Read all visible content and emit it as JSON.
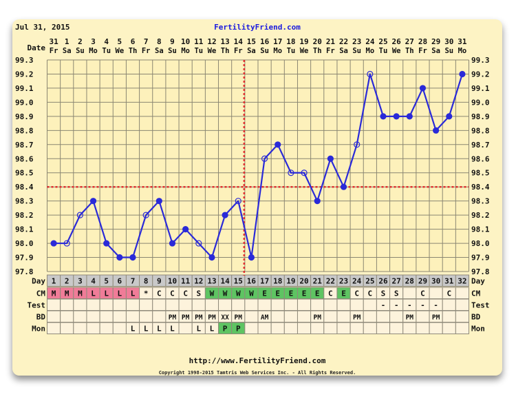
{
  "header": {
    "date": "Jul 31, 2015",
    "site": "FertilityFriend.com"
  },
  "footer": {
    "url": "http://www.FertilityFriend.com",
    "copyright": "Copyright 1998-2015 Tamtris Web Services Inc. - All Rights Reserved."
  },
  "row_labels": {
    "date": "Date",
    "day": "Day",
    "cm": "CM",
    "test": "Test",
    "bd": "BD",
    "mon": "Mon"
  },
  "colors": {
    "line": "#2a2ad8",
    "coverline": "#e03030",
    "cm_pink": "#f07c98",
    "cm_green": "#5ec462",
    "plot_bg": "#fdf1bb",
    "grid": "#8a8672"
  },
  "chart_data": {
    "type": "line",
    "ylim": [
      97.8,
      99.3
    ],
    "yticks": [
      "99.3",
      "99.2",
      "99.1",
      "99.0",
      "98.9",
      "98.8",
      "98.7",
      "98.6",
      "98.5",
      "98.4",
      "98.3",
      "98.2",
      "98.1",
      "98.0",
      "97.9",
      "97.8"
    ],
    "coverline": 98.4,
    "ovulation_day": 16,
    "grid": true,
    "days": [
      {
        "day": "1",
        "date": "31",
        "dow": "Fr",
        "temp": 98.0,
        "open": false,
        "cm": "M",
        "cm_color": "pink",
        "test": "",
        "bd": "",
        "mon": ""
      },
      {
        "day": "2",
        "date": "1",
        "dow": "Sa",
        "temp": 98.0,
        "open": true,
        "cm": "M",
        "cm_color": "pink",
        "test": "",
        "bd": "",
        "mon": ""
      },
      {
        "day": "3",
        "date": "2",
        "dow": "Su",
        "temp": 98.2,
        "open": true,
        "cm": "M",
        "cm_color": "pink",
        "test": "",
        "bd": "",
        "mon": ""
      },
      {
        "day": "4",
        "date": "3",
        "dow": "Mo",
        "temp": 98.3,
        "open": false,
        "cm": "L",
        "cm_color": "pink",
        "test": "",
        "bd": "",
        "mon": ""
      },
      {
        "day": "5",
        "date": "4",
        "dow": "Tu",
        "temp": 98.0,
        "open": false,
        "cm": "L",
        "cm_color": "pink",
        "test": "",
        "bd": "",
        "mon": ""
      },
      {
        "day": "6",
        "date": "5",
        "dow": "We",
        "temp": 97.9,
        "open": false,
        "cm": "L",
        "cm_color": "pink",
        "test": "",
        "bd": "",
        "mon": ""
      },
      {
        "day": "7",
        "date": "6",
        "dow": "Th",
        "temp": 97.9,
        "open": false,
        "cm": "L",
        "cm_color": "pink",
        "test": "",
        "bd": "",
        "mon": "L"
      },
      {
        "day": "8",
        "date": "7",
        "dow": "Fr",
        "temp": 98.2,
        "open": true,
        "cm": "*",
        "cm_color": "",
        "test": "",
        "bd": "",
        "mon": "L"
      },
      {
        "day": "9",
        "date": "8",
        "dow": "Sa",
        "temp": 98.3,
        "open": false,
        "cm": "C",
        "cm_color": "",
        "test": "",
        "bd": "",
        "mon": "L"
      },
      {
        "day": "10",
        "date": "9",
        "dow": "Su",
        "temp": 98.0,
        "open": false,
        "cm": "C",
        "cm_color": "",
        "test": "",
        "bd": "PM",
        "mon": "L"
      },
      {
        "day": "11",
        "date": "10",
        "dow": "Mo",
        "temp": 98.1,
        "open": false,
        "cm": "C",
        "cm_color": "",
        "test": "",
        "bd": "PM",
        "mon": ""
      },
      {
        "day": "12",
        "date": "11",
        "dow": "Tu",
        "temp": 98.0,
        "open": true,
        "cm": "S",
        "cm_color": "",
        "test": "",
        "bd": "PM",
        "mon": "L"
      },
      {
        "day": "13",
        "date": "12",
        "dow": "We",
        "temp": 97.9,
        "open": false,
        "cm": "W",
        "cm_color": "green",
        "test": "",
        "bd": "PM",
        "mon": "L"
      },
      {
        "day": "14",
        "date": "13",
        "dow": "Th",
        "temp": 98.2,
        "open": false,
        "cm": "W",
        "cm_color": "green",
        "test": "",
        "bd": "XX",
        "mon": "P"
      },
      {
        "day": "15",
        "date": "14",
        "dow": "Fr",
        "temp": 98.3,
        "open": true,
        "cm": "W",
        "cm_color": "green",
        "test": "",
        "bd": "PM",
        "mon": "P"
      },
      {
        "day": "16",
        "date": "15",
        "dow": "Sa",
        "temp": 97.9,
        "open": false,
        "cm": "W",
        "cm_color": "green",
        "test": "",
        "bd": "",
        "mon": ""
      },
      {
        "day": "17",
        "date": "16",
        "dow": "Su",
        "temp": 98.6,
        "open": true,
        "cm": "E",
        "cm_color": "green",
        "test": "",
        "bd": "AM",
        "mon": ""
      },
      {
        "day": "18",
        "date": "17",
        "dow": "Mo",
        "temp": 98.7,
        "open": false,
        "cm": "E",
        "cm_color": "green",
        "test": "",
        "bd": "",
        "mon": ""
      },
      {
        "day": "19",
        "date": "18",
        "dow": "Tu",
        "temp": 98.5,
        "open": true,
        "cm": "E",
        "cm_color": "green",
        "test": "",
        "bd": "",
        "mon": ""
      },
      {
        "day": "20",
        "date": "19",
        "dow": "We",
        "temp": 98.5,
        "open": true,
        "cm": "E",
        "cm_color": "green",
        "test": "",
        "bd": "",
        "mon": ""
      },
      {
        "day": "21",
        "date": "20",
        "dow": "Th",
        "temp": 98.3,
        "open": false,
        "cm": "E",
        "cm_color": "green",
        "test": "",
        "bd": "PM",
        "mon": ""
      },
      {
        "day": "22",
        "date": "21",
        "dow": "Fr",
        "temp": 98.6,
        "open": false,
        "cm": "C",
        "cm_color": "",
        "test": "",
        "bd": "",
        "mon": ""
      },
      {
        "day": "23",
        "date": "22",
        "dow": "Sa",
        "temp": 98.4,
        "open": false,
        "cm": "E",
        "cm_color": "green",
        "test": "",
        "bd": "",
        "mon": ""
      },
      {
        "day": "24",
        "date": "23",
        "dow": "Su",
        "temp": 98.7,
        "open": true,
        "cm": "C",
        "cm_color": "",
        "test": "",
        "bd": "PM",
        "mon": ""
      },
      {
        "day": "25",
        "date": "24",
        "dow": "Mo",
        "temp": 99.2,
        "open": true,
        "cm": "C",
        "cm_color": "",
        "test": "",
        "bd": "",
        "mon": ""
      },
      {
        "day": "26",
        "date": "25",
        "dow": "Tu",
        "temp": 98.9,
        "open": false,
        "cm": "S",
        "cm_color": "",
        "test": "-",
        "bd": "",
        "mon": ""
      },
      {
        "day": "27",
        "date": "26",
        "dow": "We",
        "temp": 98.9,
        "open": false,
        "cm": "S",
        "cm_color": "",
        "test": "-",
        "bd": "",
        "mon": ""
      },
      {
        "day": "28",
        "date": "27",
        "dow": "Th",
        "temp": 98.9,
        "open": false,
        "cm": "",
        "cm_color": "",
        "test": "-",
        "bd": "PM",
        "mon": ""
      },
      {
        "day": "29",
        "date": "28",
        "dow": "Fr",
        "temp": 99.1,
        "open": false,
        "cm": "C",
        "cm_color": "",
        "test": "-",
        "bd": "",
        "mon": ""
      },
      {
        "day": "30",
        "date": "29",
        "dow": "Sa",
        "temp": 98.8,
        "open": false,
        "cm": "",
        "cm_color": "",
        "test": "-",
        "bd": "PM",
        "mon": ""
      },
      {
        "day": "31",
        "date": "30",
        "dow": "Su",
        "temp": 98.9,
        "open": false,
        "cm": "C",
        "cm_color": "",
        "test": "",
        "bd": "",
        "mon": ""
      },
      {
        "day": "32",
        "date": "31",
        "dow": "Mo",
        "temp": 99.2,
        "open": false,
        "cm": "",
        "cm_color": "",
        "test": "",
        "bd": "",
        "mon": ""
      }
    ]
  }
}
